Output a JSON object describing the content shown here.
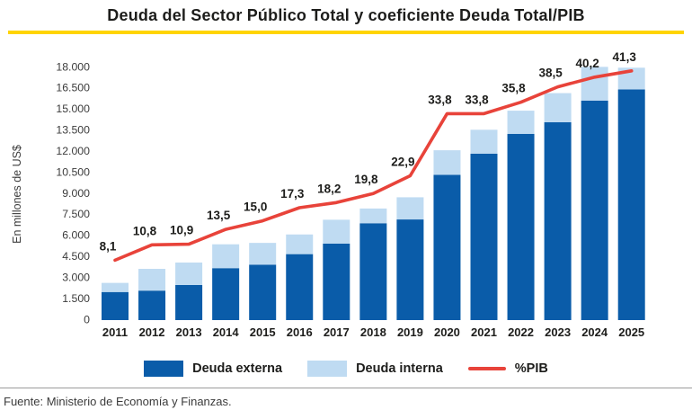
{
  "title": "Deuda del Sector Público Total y coeficiente Deuda Total/PIB",
  "y_axis": {
    "label": "En millones de US$",
    "ticks": [
      "0",
      "1.500",
      "3.000",
      "4.500",
      "6.000",
      "7.500",
      "9.000",
      "10.500",
      "12.000",
      "13.500",
      "15.000",
      "16.500",
      "18.000"
    ]
  },
  "legend": {
    "externa": "Deuda externa",
    "interna": "Deuda interna",
    "pib": "%PIB"
  },
  "footer": {
    "source": "Fuente: Ministerio de Economía y Finanzas."
  },
  "colors": {
    "external_bar": "#0A5CA9",
    "internal_bar": "#BFDBF2",
    "pib_line": "#E8433A",
    "title_rule": "#FFD400",
    "text_dark": "#1D1D1B",
    "axis_text": "#3C3C3C",
    "divider": "#9B9B9B"
  },
  "chart_data": {
    "type": "bar",
    "subtype": "stacked-bars-with-line-overlay",
    "title": "Deuda del Sector Público Total y coeficiente Deuda Total/PIB",
    "ylabel": "En millones de US$",
    "ylim": [
      0,
      18000
    ],
    "grid": false,
    "legend_position": "bottom",
    "categories": [
      "2011",
      "2012",
      "2013",
      "2014",
      "2015",
      "2016",
      "2017",
      "2018",
      "2019",
      "2020",
      "2021",
      "2022",
      "2023",
      "2024",
      "2025"
    ],
    "series": [
      {
        "name": "Deuda externa",
        "type": "bar",
        "stack": "deuda",
        "color": "#0A5CA9",
        "values": [
          2000,
          2100,
          2500,
          3700,
          3950,
          4700,
          5450,
          6900,
          7170,
          10350,
          11860,
          13270,
          14100,
          15640,
          16430
        ]
      },
      {
        "name": "Deuda interna",
        "type": "bar",
        "stack": "deuda",
        "color": "#BFDBF2",
        "values": [
          650,
          1550,
          1600,
          1700,
          1550,
          1400,
          1700,
          1050,
          1580,
          1750,
          1700,
          1650,
          2070,
          2400,
          1550
        ]
      },
      {
        "name": "%PIB",
        "type": "line",
        "color": "#E8433A",
        "values": [
          8.1,
          10.8,
          10.9,
          13.5,
          15.0,
          17.3,
          18.2,
          19.8,
          22.9,
          33.8,
          33.8,
          35.8,
          38.5,
          40.2,
          41.3
        ],
        "point_labels": [
          "8,1",
          "10,8",
          "10,9",
          "13,5",
          "15,0",
          "17,3",
          "18,2",
          "19,8",
          "22,9",
          "33,8",
          "33,8",
          "35,8",
          "38,5",
          "40,2",
          "41,3"
        ]
      }
    ]
  }
}
